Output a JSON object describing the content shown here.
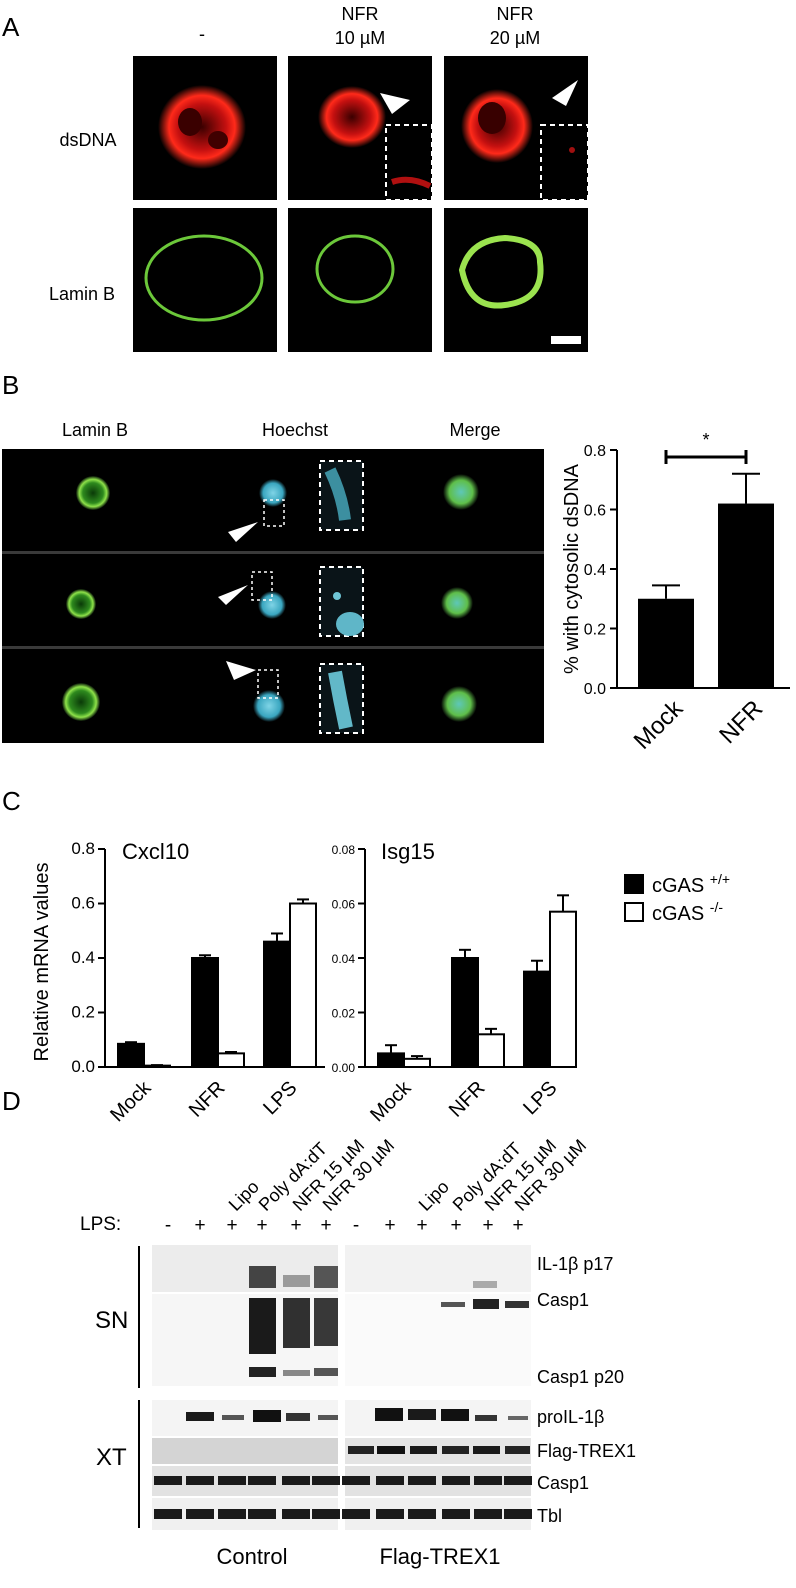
{
  "panelA": {
    "letter": "A",
    "columns": [
      "-",
      "NFR",
      "10 µM",
      "NFR",
      "20 µM"
    ],
    "rows": [
      "dsDNA",
      "Lamin B"
    ]
  },
  "panelB": {
    "letter": "B",
    "columns": [
      "Lamin B",
      "Hoechst",
      "Merge"
    ],
    "significance": "*"
  },
  "panelC": {
    "letter": "C"
  },
  "panelD": {
    "letter": "D",
    "lps_label": "LPS:",
    "lane_labels": [
      "Lipo",
      "Poly dA:dT",
      "NFR 15 µM",
      "NFR 30 µM"
    ],
    "lps_marks": [
      "-",
      "+",
      "+",
      "+",
      "+",
      "+"
    ],
    "groups": [
      "SN",
      "XT"
    ],
    "bands": [
      "IL-1β p17",
      "Casp1",
      "Casp1 p20",
      "proIL-1β",
      "Flag-TREX1",
      "Casp1",
      "Tbl"
    ],
    "conditions": [
      "Control",
      "Flag-TREX1"
    ]
  },
  "chart_data": [
    {
      "type": "bar",
      "panel": "B",
      "categories": [
        "Mock",
        "NFR"
      ],
      "values": [
        0.3,
        0.62
      ],
      "errors": [
        0.045,
        0.1
      ],
      "ylabel": "% with cytosolic dsDNA",
      "ylim": [
        0,
        0.8
      ],
      "yticks": [
        "0.0",
        "0.2",
        "0.4",
        "0.6",
        "0.8"
      ],
      "colors": [
        "#000000"
      ]
    },
    {
      "type": "bar",
      "panel": "C",
      "title": "Cxcl10",
      "ylabel": "Relative mRNA values",
      "categories": [
        "Mock",
        "NFR",
        "LPS"
      ],
      "ylim": [
        0,
        0.8
      ],
      "yticks": [
        "0.0",
        "0.2",
        "0.4",
        "0.6",
        "0.8"
      ],
      "series": [
        {
          "name": "cGAS +/+",
          "values": [
            0.085,
            0.4,
            0.46
          ],
          "errors": [
            0.006,
            0.01,
            0.03
          ],
          "color": "#000000"
        },
        {
          "name": "cGAS -/-",
          "values": [
            0.005,
            0.05,
            0.6
          ],
          "errors": [
            0.002,
            0.005,
            0.015
          ],
          "color": "#ffffff"
        }
      ]
    },
    {
      "type": "bar",
      "panel": "C",
      "title": "Isg15",
      "categories": [
        "Mock",
        "NFR",
        "LPS"
      ],
      "ylim": [
        0,
        0.08
      ],
      "yticks": [
        "0.00",
        "0.02",
        "0.04",
        "0.06",
        "0.08"
      ],
      "series": [
        {
          "name": "cGAS +/+",
          "values": [
            0.005,
            0.04,
            0.035
          ],
          "errors": [
            0.003,
            0.003,
            0.004
          ],
          "color": "#000000"
        },
        {
          "name": "cGAS -/-",
          "values": [
            0.003,
            0.012,
            0.057
          ],
          "errors": [
            0.001,
            0.002,
            0.006
          ],
          "color": "#ffffff"
        }
      ],
      "legend": {
        "placement": "right",
        "entries": [
          {
            "base": "cGAS",
            "sup": "+/+"
          },
          {
            "base": "cGAS",
            "sup": "-/-"
          }
        ]
      }
    }
  ]
}
